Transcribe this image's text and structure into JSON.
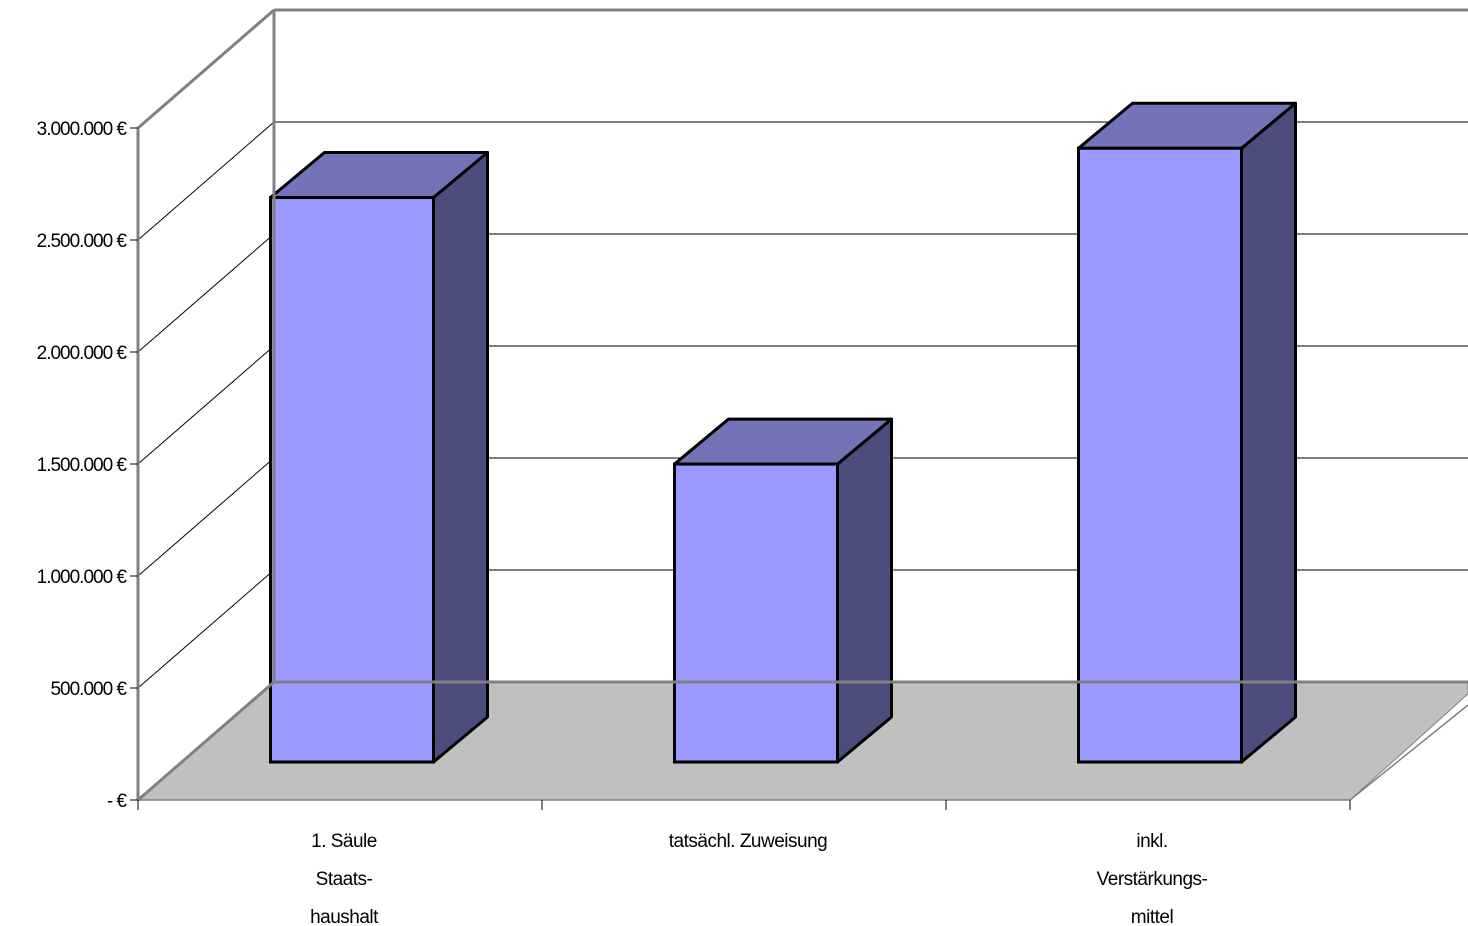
{
  "chart_data": {
    "type": "bar",
    "three_d": true,
    "categories": [
      [
        "1. Säule",
        "Staats-",
        "haushalt"
      ],
      [
        "tatsächl. Zuweisung"
      ],
      [
        "inkl.",
        "Verstärkungs-",
        "mittel"
      ]
    ],
    "values": [
      2520000,
      1330000,
      2740000
    ],
    "title": "",
    "xlabel": "",
    "ylabel": "",
    "ylim": [
      0,
      3000000
    ],
    "y_ticks": [
      {
        "value": 0,
        "label": "- €"
      },
      {
        "value": 500000,
        "label": "500.000 €"
      },
      {
        "value": 1000000,
        "label": "1.000.000 €"
      },
      {
        "value": 1500000,
        "label": "1.500.000 €"
      },
      {
        "value": 2000000,
        "label": "2.000.000 €"
      },
      {
        "value": 2500000,
        "label": "2.500.000 €"
      },
      {
        "value": 3000000,
        "label": "3.000.000 €"
      }
    ],
    "grid": true,
    "legend": "none",
    "colors": {
      "bar_front": "#9999ff",
      "bar_top": "#7373b8",
      "bar_side": "#4d4d7d",
      "floor": "#c0c0c0",
      "walls": "#ffffff",
      "edges": "#000000",
      "frame": "#808080"
    }
  }
}
